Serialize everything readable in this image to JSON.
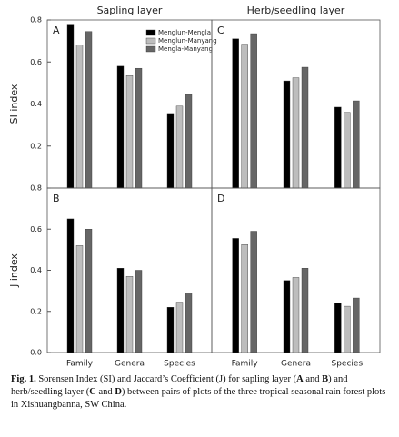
{
  "chart_data": [
    {
      "type": "bar",
      "title": "Sapling layer",
      "ylabel": "SI index",
      "label": "A",
      "categories": [
        null,
        null,
        null
      ],
      "ylim": [
        0,
        0.8
      ],
      "yticks": [
        0.2,
        0.4,
        0.6,
        0.8
      ],
      "legend": "upper right",
      "series": [
        {
          "name": "Menglun-Mengla",
          "color": "#000000",
          "values": [
            0.78,
            0.58,
            0.355
          ]
        },
        {
          "name": "Menglun-Manyang",
          "color": "#bdbdbd",
          "values": [
            0.68,
            0.535,
            0.39
          ]
        },
        {
          "name": "Mengla-Manyang",
          "color": "#666666",
          "values": [
            0.745,
            0.57,
            0.445
          ]
        }
      ]
    },
    {
      "type": "bar",
      "ylabel": "J index",
      "label": "B",
      "categories": [
        "Family",
        "Genera",
        "Species"
      ],
      "ylim": [
        0,
        0.8
      ],
      "yticks": [
        {
          "value": 0,
          "label": "0.0"
        },
        0.2,
        0.4,
        0.6,
        0.8
      ],
      "series": [
        {
          "color": "#000000",
          "values": [
            0.65,
            0.41,
            0.22
          ]
        },
        {
          "color": "#bdbdbd",
          "values": [
            0.52,
            0.37,
            0.245
          ]
        },
        {
          "color": "#666666",
          "values": [
            0.6,
            0.4,
            0.29
          ]
        }
      ]
    },
    {
      "type": "bar",
      "title": "Herb/seedling layer",
      "label": "C",
      "categories": [
        null,
        null,
        null
      ],
      "ylim": [
        0,
        0.8
      ],
      "series": [
        {
          "color": "#000000",
          "values": [
            0.71,
            0.51,
            0.385
          ]
        },
        {
          "color": "#bdbdbd",
          "values": [
            0.685,
            0.525,
            0.36
          ]
        },
        {
          "color": "#666666",
          "values": [
            0.735,
            0.575,
            0.415
          ]
        }
      ]
    },
    {
      "type": "bar",
      "label": "D",
      "categories": [
        "Family",
        "Genera",
        "Species"
      ],
      "ylim": [
        0,
        0.8
      ],
      "series": [
        {
          "color": "#000000",
          "values": [
            0.555,
            0.35,
            0.24
          ]
        },
        {
          "color": "#bdbdbd",
          "values": [
            0.525,
            0.365,
            0.225
          ]
        },
        {
          "color": "#666666",
          "values": [
            0.59,
            0.41,
            0.265
          ]
        }
      ]
    }
  ],
  "caption": [
    {
      "text": "Fig. 1.",
      "bold": true
    },
    {
      "text": " Sorensen Index (SI) and Jaccard’s Coefficient (J) for sapling layer ("
    },
    {
      "text": "A",
      "bold": true
    },
    {
      "text": " and "
    },
    {
      "text": "B",
      "bold": true
    },
    {
      "text": ") and herb/seedling layer ("
    },
    {
      "text": "C",
      "bold": true
    },
    {
      "text": " and "
    },
    {
      "text": "D",
      "bold": true
    },
    {
      "text": ") between pairs of plots of the three tropical seasonal rain forest plots in Xishuangbanna, SW China."
    }
  ]
}
